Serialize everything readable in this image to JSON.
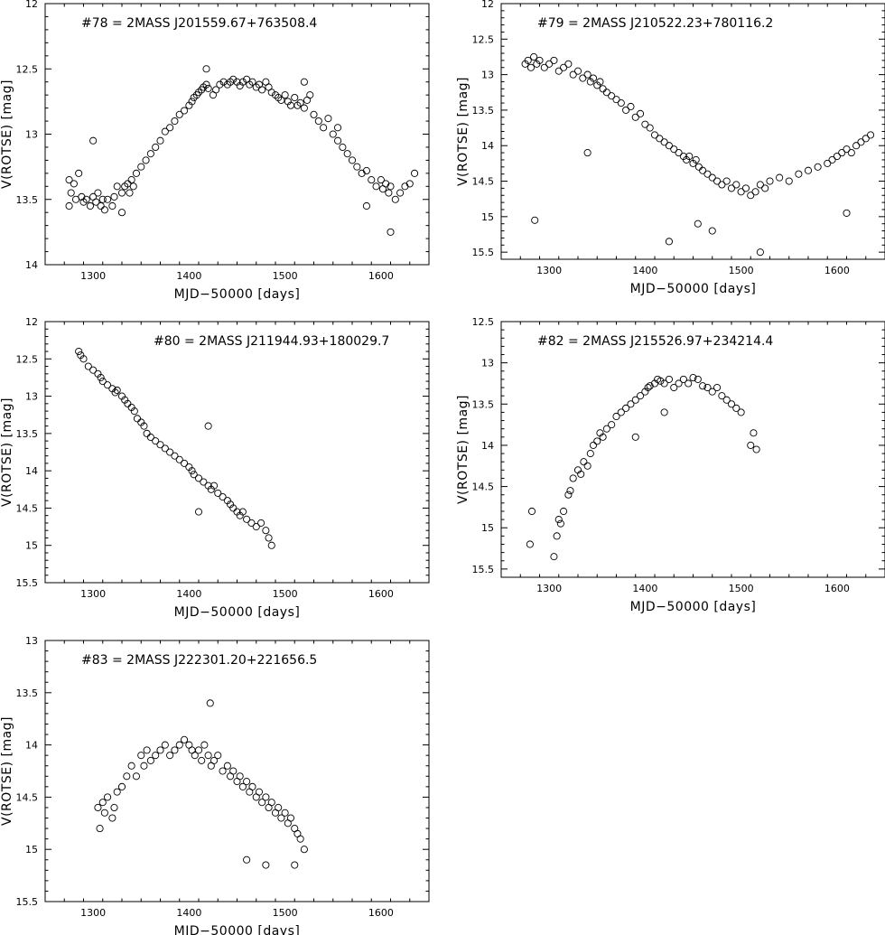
{
  "chart_data": [
    {
      "type": "scatter",
      "title": "#78  =  2MASS  J201559.67+763508.4",
      "xlabel": "MJD−50000  [days]",
      "ylabel": "V(ROTSE)  [mag]",
      "xlim": [
        1250,
        1650
      ],
      "ylim": [
        14,
        12
      ],
      "y_inverted": true,
      "x_ticks": [
        1300,
        1400,
        1500,
        1600
      ],
      "y_ticks": [
        12,
        12.5,
        13,
        13.5,
        14
      ],
      "y_tick_labels": [
        "12",
        "12.5",
        "13",
        "13.5",
        "14"
      ],
      "series": [
        {
          "marker": "open-circle",
          "x": [
            1275,
            1277,
            1280,
            1282,
            1285,
            1288,
            1290,
            1293,
            1297,
            1300,
            1303,
            1305,
            1308,
            1310,
            1312,
            1315,
            1320,
            1322,
            1325,
            1330,
            1333,
            1336,
            1338,
            1340,
            1342,
            1345,
            1350,
            1355,
            1360,
            1365,
            1370,
            1375,
            1380,
            1385,
            1390,
            1395,
            1400,
            1403,
            1405,
            1408,
            1410,
            1413,
            1415,
            1418,
            1420,
            1425,
            1428,
            1432,
            1436,
            1440,
            1443,
            1446,
            1450,
            1453,
            1456,
            1460,
            1463,
            1466,
            1470,
            1473,
            1476,
            1480,
            1483,
            1486,
            1490,
            1493,
            1496,
            1500,
            1503,
            1506,
            1510,
            1513,
            1516,
            1520,
            1523,
            1526,
            1530,
            1535,
            1540,
            1545,
            1550,
            1555,
            1560,
            1565,
            1570,
            1575,
            1580,
            1585,
            1590,
            1595,
            1600,
            1602,
            1605,
            1608,
            1610,
            1615,
            1620,
            1625,
            1630,
            1635,
            1275,
            1300,
            1330,
            1418,
            1520,
            1555,
            1610,
            1585
          ],
          "y": [
            13.35,
            13.45,
            13.38,
            13.5,
            13.3,
            13.48,
            13.52,
            13.5,
            13.55,
            13.48,
            13.52,
            13.45,
            13.55,
            13.5,
            13.58,
            13.5,
            13.55,
            13.48,
            13.4,
            13.45,
            13.4,
            13.38,
            13.45,
            13.35,
            13.4,
            13.3,
            13.25,
            13.2,
            13.15,
            13.1,
            13.05,
            12.98,
            12.95,
            12.9,
            12.85,
            12.82,
            12.78,
            12.75,
            12.72,
            12.7,
            12.68,
            12.66,
            12.64,
            12.62,
            12.65,
            12.7,
            12.66,
            12.62,
            12.6,
            12.62,
            12.6,
            12.58,
            12.6,
            12.63,
            12.6,
            12.58,
            12.62,
            12.6,
            12.64,
            12.62,
            12.66,
            12.6,
            12.64,
            12.68,
            12.7,
            12.72,
            12.74,
            12.7,
            12.75,
            12.78,
            12.72,
            12.78,
            12.76,
            12.8,
            12.74,
            12.7,
            12.85,
            12.9,
            12.95,
            12.88,
            13.0,
            13.05,
            13.1,
            13.15,
            13.2,
            13.25,
            13.3,
            13.28,
            13.35,
            13.4,
            13.35,
            13.42,
            13.38,
            13.45,
            13.4,
            13.5,
            13.45,
            13.4,
            13.38,
            13.3,
            13.55,
            13.05,
            13.6,
            12.5,
            12.6,
            12.95,
            13.75,
            13.55
          ]
        }
      ]
    },
    {
      "type": "scatter",
      "title": "#79  =  2MASS  J210522.23+780116.2",
      "xlabel": "MJD−50000  [days]",
      "ylabel": "V(ROTSE)  [mag]",
      "xlim": [
        1250,
        1650
      ],
      "ylim": [
        15.6,
        12
      ],
      "y_inverted": true,
      "x_ticks": [
        1300,
        1400,
        1500,
        1600
      ],
      "y_ticks": [
        12,
        12.5,
        13,
        13.5,
        14,
        14.5,
        15,
        15.5
      ],
      "y_tick_labels": [
        "12",
        "12.5",
        "13",
        "13.5",
        "14",
        "14.5",
        "15",
        "15.5"
      ],
      "series": [
        {
          "marker": "open-circle",
          "x": [
            1275,
            1278,
            1281,
            1284,
            1287,
            1290,
            1295,
            1300,
            1305,
            1310,
            1315,
            1320,
            1325,
            1330,
            1335,
            1340,
            1343,
            1346,
            1350,
            1353,
            1356,
            1360,
            1365,
            1370,
            1375,
            1380,
            1385,
            1390,
            1395,
            1400,
            1405,
            1410,
            1415,
            1420,
            1425,
            1430,
            1435,
            1440,
            1443,
            1446,
            1450,
            1453,
            1456,
            1460,
            1465,
            1470,
            1475,
            1480,
            1485,
            1490,
            1495,
            1500,
            1505,
            1510,
            1515,
            1520,
            1525,
            1530,
            1540,
            1550,
            1560,
            1570,
            1580,
            1590,
            1595,
            1600,
            1605,
            1610,
            1615,
            1620,
            1625,
            1630,
            1635,
            1285,
            1340,
            1425,
            1470,
            1520,
            1610,
            1455
          ],
          "y": [
            12.85,
            12.8,
            12.9,
            12.75,
            12.85,
            12.8,
            12.9,
            12.85,
            12.8,
            12.95,
            12.9,
            12.85,
            13.0,
            12.95,
            13.05,
            13.0,
            13.1,
            13.05,
            13.15,
            13.1,
            13.2,
            13.25,
            13.3,
            13.35,
            13.4,
            13.5,
            13.45,
            13.6,
            13.55,
            13.7,
            13.75,
            13.85,
            13.9,
            13.95,
            14.0,
            14.05,
            14.1,
            14.15,
            14.2,
            14.15,
            14.25,
            14.2,
            14.3,
            14.35,
            14.4,
            14.45,
            14.5,
            14.55,
            14.5,
            14.6,
            14.55,
            14.65,
            14.6,
            14.7,
            14.65,
            14.55,
            14.6,
            14.5,
            14.45,
            14.5,
            14.4,
            14.35,
            14.3,
            14.25,
            14.2,
            14.15,
            14.1,
            14.05,
            14.1,
            14.0,
            13.95,
            13.9,
            13.85,
            15.05,
            14.1,
            15.35,
            15.2,
            15.5,
            14.95,
            15.1
          ]
        }
      ]
    },
    {
      "type": "scatter",
      "title": "#80  =  2MASS  J211944.93+180029.7",
      "xlabel": "MJD−50000  [days]",
      "ylabel": "V(ROTSE)  [mag]",
      "xlim": [
        1250,
        1650
      ],
      "ylim": [
        15.5,
        12
      ],
      "y_inverted": true,
      "x_ticks": [
        1300,
        1400,
        1500,
        1600
      ],
      "y_ticks": [
        12,
        12.5,
        13,
        13.5,
        14,
        14.5,
        15,
        15.5
      ],
      "y_tick_labels": [
        "12",
        "12.5",
        "13",
        "13.5",
        "14",
        "14.5",
        "15",
        "15.5"
      ],
      "series": [
        {
          "marker": "open-circle",
          "x": [
            1285,
            1287,
            1290,
            1295,
            1300,
            1305,
            1308,
            1310,
            1315,
            1320,
            1323,
            1325,
            1330,
            1333,
            1336,
            1340,
            1343,
            1346,
            1350,
            1353,
            1356,
            1360,
            1365,
            1370,
            1375,
            1380,
            1385,
            1390,
            1395,
            1400,
            1403,
            1405,
            1410,
            1415,
            1420,
            1423,
            1426,
            1430,
            1435,
            1440,
            1443,
            1446,
            1450,
            1453,
            1456,
            1460,
            1465,
            1470,
            1475,
            1480,
            1483,
            1486,
            1420,
            1410
          ],
          "y": [
            12.4,
            12.45,
            12.5,
            12.6,
            12.65,
            12.7,
            12.75,
            12.8,
            12.85,
            12.9,
            12.95,
            12.92,
            13.0,
            13.05,
            13.1,
            13.15,
            13.2,
            13.3,
            13.35,
            13.4,
            13.5,
            13.55,
            13.6,
            13.65,
            13.7,
            13.75,
            13.8,
            13.85,
            13.9,
            13.95,
            14.0,
            14.05,
            14.1,
            14.15,
            14.2,
            14.25,
            14.2,
            14.3,
            14.35,
            14.4,
            14.45,
            14.5,
            14.55,
            14.6,
            14.55,
            14.65,
            14.7,
            14.75,
            14.7,
            14.8,
            14.9,
            15.0,
            13.4,
            14.55
          ]
        }
      ]
    },
    {
      "type": "scatter",
      "title": "#82  =  2MASS  J215526.97+234214.4",
      "xlabel": "MJD−50000  [days]",
      "ylabel": "V(ROTSE)  [mag]",
      "xlim": [
        1250,
        1650
      ],
      "ylim": [
        15.6,
        12.5
      ],
      "y_inverted": true,
      "x_ticks": [
        1300,
        1400,
        1500,
        1600
      ],
      "y_ticks": [
        12.5,
        13,
        13.5,
        14,
        14.5,
        15,
        15.5
      ],
      "y_tick_labels": [
        "12.5",
        "13",
        "13.5",
        "14",
        "14.5",
        "15",
        "15.5"
      ],
      "series": [
        {
          "marker": "open-circle",
          "x": [
            1280,
            1282,
            1305,
            1308,
            1310,
            1312,
            1315,
            1320,
            1322,
            1325,
            1330,
            1333,
            1336,
            1340,
            1343,
            1346,
            1350,
            1353,
            1356,
            1360,
            1365,
            1370,
            1375,
            1380,
            1385,
            1390,
            1395,
            1400,
            1403,
            1405,
            1410,
            1413,
            1416,
            1420,
            1425,
            1430,
            1435,
            1440,
            1445,
            1450,
            1455,
            1460,
            1465,
            1470,
            1475,
            1480,
            1485,
            1490,
            1495,
            1500,
            1510,
            1513,
            1516,
            1420,
            1390
          ],
          "y": [
            15.2,
            14.8,
            15.35,
            15.1,
            14.9,
            14.95,
            14.8,
            14.6,
            14.55,
            14.4,
            14.3,
            14.35,
            14.2,
            14.25,
            14.1,
            14.0,
            13.95,
            13.85,
            13.9,
            13.8,
            13.75,
            13.65,
            13.6,
            13.55,
            13.5,
            13.45,
            13.4,
            13.35,
            13.3,
            13.28,
            13.25,
            13.2,
            13.22,
            13.25,
            13.2,
            13.3,
            13.25,
            13.2,
            13.25,
            13.18,
            13.2,
            13.28,
            13.3,
            13.35,
            13.3,
            13.4,
            13.45,
            13.5,
            13.55,
            13.6,
            14.0,
            13.85,
            14.05,
            13.6,
            13.9
          ]
        }
      ]
    },
    {
      "type": "scatter",
      "title": "#83  =  2MASS  J222301.20+221656.5",
      "xlabel": "MJD−50000  [days]",
      "ylabel": "V(ROTSE)  [mag]",
      "xlim": [
        1250,
        1650
      ],
      "ylim": [
        15.5,
        13
      ],
      "y_inverted": true,
      "x_ticks": [
        1300,
        1400,
        1500,
        1600
      ],
      "y_ticks": [
        13,
        13.5,
        14,
        14.5,
        15,
        15.5
      ],
      "y_tick_labels": [
        "13",
        "13.5",
        "14",
        "14.5",
        "15",
        "15.5"
      ],
      "series": [
        {
          "marker": "open-circle",
          "x": [
            1305,
            1307,
            1310,
            1312,
            1315,
            1320,
            1322,
            1325,
            1330,
            1335,
            1340,
            1345,
            1350,
            1353,
            1356,
            1360,
            1365,
            1370,
            1375,
            1380,
            1385,
            1390,
            1395,
            1400,
            1403,
            1406,
            1410,
            1413,
            1416,
            1420,
            1423,
            1426,
            1430,
            1435,
            1440,
            1443,
            1446,
            1450,
            1453,
            1456,
            1460,
            1463,
            1466,
            1470,
            1473,
            1476,
            1480,
            1483,
            1486,
            1490,
            1493,
            1496,
            1500,
            1503,
            1506,
            1510,
            1513,
            1516,
            1520,
            1422,
            1460,
            1480,
            1510
          ],
          "y": [
            14.6,
            14.8,
            14.55,
            14.65,
            14.5,
            14.7,
            14.6,
            14.45,
            14.4,
            14.3,
            14.2,
            14.3,
            14.1,
            14.2,
            14.05,
            14.15,
            14.1,
            14.05,
            14.0,
            14.1,
            14.05,
            14.0,
            13.95,
            14.0,
            14.05,
            14.1,
            14.05,
            14.15,
            14.0,
            14.1,
            14.2,
            14.15,
            14.1,
            14.25,
            14.2,
            14.3,
            14.25,
            14.35,
            14.3,
            14.4,
            14.35,
            14.45,
            14.4,
            14.5,
            14.45,
            14.55,
            14.5,
            14.6,
            14.55,
            14.65,
            14.6,
            14.7,
            14.65,
            14.75,
            14.7,
            14.8,
            14.85,
            14.9,
            15.0,
            13.6,
            15.1,
            15.15,
            15.15
          ]
        }
      ]
    }
  ]
}
